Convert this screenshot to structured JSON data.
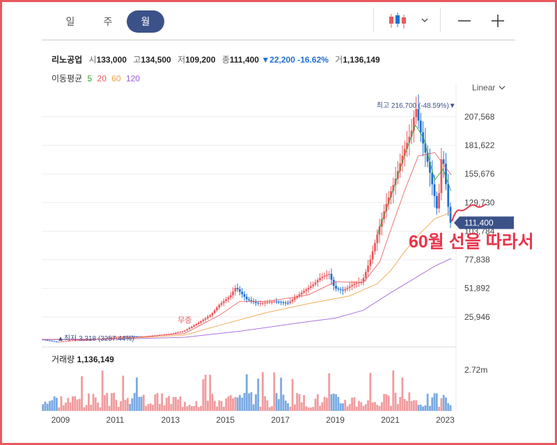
{
  "tabs": [
    {
      "label": "일",
      "active": false
    },
    {
      "label": "주",
      "active": false
    },
    {
      "label": "월",
      "active": true
    }
  ],
  "toolbar": {
    "chart_type_icon": "candlestick-icon",
    "dropdown_icon": "chevron-down-icon",
    "zoom_out_icon": "minus-icon",
    "zoom_in_icon": "plus-icon"
  },
  "quote": {
    "name": "리노공업",
    "open_label": "시",
    "open": "133,000",
    "high_label": "고",
    "high": "134,500",
    "low_label": "저",
    "low": "109,200",
    "close_label": "종",
    "close": "111,400",
    "change": "▼22,200",
    "change_pct": "-16.62%",
    "volume_label": "거",
    "volume": "1,136,149"
  },
  "moving_average": {
    "label": "이동평균",
    "periods": [
      {
        "label": "5",
        "color": "#2aa32a"
      },
      {
        "label": "20",
        "color": "#e8595e"
      },
      {
        "label": "60",
        "color": "#f0a040"
      },
      {
        "label": "120",
        "color": "#9a5cd6"
      }
    ]
  },
  "scale": {
    "label": "Linear"
  },
  "colors": {
    "up": "#e8595e",
    "down": "#1f6fd1",
    "accent": "#3b5289",
    "annotation": "#e8354a"
  },
  "annotation": {
    "text": "60월 선을 따라서"
  },
  "chart_data": {
    "type": "candlestick",
    "title": "리노공업",
    "x_range": [
      2008.3,
      2023.25
    ],
    "y_ticks": [
      25946,
      51892,
      77838,
      103784,
      129730,
      155676,
      181622,
      207568
    ],
    "y_tick_labels": [
      "25,946",
      "51,892",
      "77,838",
      "103,784",
      "129,730",
      "155,676",
      "181,622",
      "207,568"
    ],
    "x_ticks": [
      2009,
      2011,
      2013,
      2015,
      2017,
      2019,
      2021,
      2023
    ],
    "x_tick_labels": [
      "2009",
      "2011",
      "2013",
      "2015",
      "2017",
      "2019",
      "2021",
      "2023"
    ],
    "ylim": [
      0,
      222000
    ],
    "grid": true,
    "max_label": {
      "text": "최고 216,700 (-48.59%)▼",
      "x": 2021.8,
      "value": 216700
    },
    "min_label": {
      "text": "▲최저 3,318 (3257.44%)",
      "x": 2008.9,
      "value": 3318
    },
    "ex_dividend_label": {
      "text": "무증",
      "x": 2013.5
    },
    "last_price": {
      "value": 111400,
      "label": "111,400"
    },
    "price_path": [
      [
        2008.3,
        5600
      ],
      [
        2008.9,
        3318
      ],
      [
        2009.5,
        4800
      ],
      [
        2010.0,
        5200
      ],
      [
        2010.5,
        6200
      ],
      [
        2011.0,
        7800
      ],
      [
        2011.5,
        8600
      ],
      [
        2012.0,
        8000
      ],
      [
        2012.5,
        9200
      ],
      [
        2013.0,
        10500
      ],
      [
        2013.5,
        13000
      ],
      [
        2014.0,
        20000
      ],
      [
        2014.5,
        28000
      ],
      [
        2014.8,
        37000
      ],
      [
        2015.2,
        45000
      ],
      [
        2015.4,
        53000
      ],
      [
        2015.8,
        42000
      ],
      [
        2016.2,
        38000
      ],
      [
        2016.8,
        40000
      ],
      [
        2017.3,
        38500
      ],
      [
        2017.8,
        48000
      ],
      [
        2018.2,
        55000
      ],
      [
        2018.5,
        62000
      ],
      [
        2018.8,
        65000
      ],
      [
        2019.0,
        52000
      ],
      [
        2019.3,
        50000
      ],
      [
        2019.7,
        56000
      ],
      [
        2020.0,
        58000
      ],
      [
        2020.3,
        78000
      ],
      [
        2020.6,
        105000
      ],
      [
        2020.9,
        130000
      ],
      [
        2021.2,
        150000
      ],
      [
        2021.5,
        175000
      ],
      [
        2021.8,
        195000
      ],
      [
        2021.95,
        216700
      ],
      [
        2022.2,
        185000
      ],
      [
        2022.4,
        165000
      ],
      [
        2022.6,
        140000
      ],
      [
        2022.75,
        120000
      ],
      [
        2022.9,
        175000
      ],
      [
        2023.0,
        160000
      ],
      [
        2023.1,
        133000
      ],
      [
        2023.2,
        111400
      ]
    ],
    "ma_lines": [
      {
        "name": "5",
        "color": "#2aa32a",
        "points": [
          [
            2020.5,
            100000
          ],
          [
            2021.0,
            135000
          ],
          [
            2021.5,
            172000
          ],
          [
            2021.9,
            200000
          ],
          [
            2022.2,
            188000
          ],
          [
            2022.6,
            150000
          ],
          [
            2022.9,
            160000
          ],
          [
            2023.2,
            140000
          ]
        ]
      },
      {
        "name": "20",
        "color": "#e8595e",
        "points": [
          [
            2008.3,
            5500
          ],
          [
            2010.0,
            5300
          ],
          [
            2012.0,
            8000
          ],
          [
            2013.5,
            11000
          ],
          [
            2014.8,
            28000
          ],
          [
            2015.5,
            40000
          ],
          [
            2016.5,
            40000
          ],
          [
            2018.0,
            46000
          ],
          [
            2019.0,
            58000
          ],
          [
            2020.0,
            57000
          ],
          [
            2020.6,
            76000
          ],
          [
            2021.0,
            105000
          ],
          [
            2021.5,
            140000
          ],
          [
            2022.0,
            172000
          ],
          [
            2022.6,
            175000
          ],
          [
            2023.2,
            155000
          ]
        ]
      },
      {
        "name": "60",
        "color": "#f0a040",
        "points": [
          [
            2008.3,
            5500
          ],
          [
            2011.0,
            6000
          ],
          [
            2013.5,
            9500
          ],
          [
            2015.0,
            20000
          ],
          [
            2016.5,
            30000
          ],
          [
            2018.0,
            38000
          ],
          [
            2019.5,
            45000
          ],
          [
            2020.5,
            56000
          ],
          [
            2021.0,
            68000
          ],
          [
            2021.5,
            85000
          ],
          [
            2022.0,
            100000
          ],
          [
            2022.6,
            115000
          ],
          [
            2023.2,
            121000
          ]
        ]
      },
      {
        "name": "120",
        "color": "#9a5cd6",
        "points": [
          [
            2008.3,
            5500
          ],
          [
            2011.0,
            5800
          ],
          [
            2013.5,
            7500
          ],
          [
            2015.5,
            13000
          ],
          [
            2017.5,
            20000
          ],
          [
            2019.0,
            25000
          ],
          [
            2020.0,
            32000
          ],
          [
            2021.0,
            48000
          ],
          [
            2021.8,
            60000
          ],
          [
            2022.6,
            72000
          ],
          [
            2023.2,
            79000
          ]
        ]
      }
    ],
    "volume": {
      "label": "거래량",
      "value": "1,136,149",
      "max_label": "2.72m",
      "max_value": 2720000
    }
  }
}
